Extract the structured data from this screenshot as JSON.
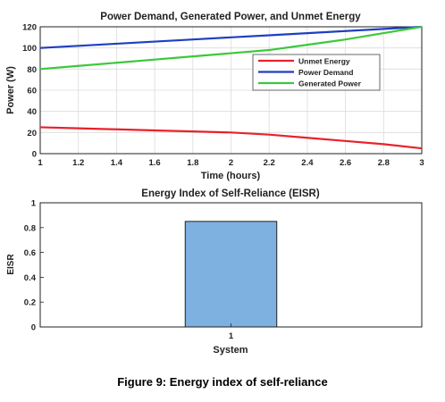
{
  "caption": "Figure 9: Energy index of self-reliance",
  "chart_data": [
    {
      "type": "line",
      "title": "Power Demand, Generated Power, and Unmet Energy",
      "xlabel": "Time (hours)",
      "ylabel": "Power (W)",
      "xlim": [
        1,
        3
      ],
      "ylim": [
        0,
        120
      ],
      "xticks": [
        "1",
        "1.2",
        "1.4",
        "1.6",
        "1.8",
        "2",
        "2.2",
        "2.4",
        "2.6",
        "2.8",
        "3"
      ],
      "yticks": [
        "0",
        "20",
        "40",
        "60",
        "80",
        "100",
        "120"
      ],
      "grid": true,
      "legend_position": "right",
      "x": [
        1,
        1.2,
        1.4,
        1.6,
        1.8,
        2,
        2.2,
        2.4,
        2.6,
        2.8,
        3
      ],
      "series": [
        {
          "name": "Unmet Energy",
          "color": "#e8222a",
          "values": [
            25,
            24,
            23,
            22,
            21,
            20,
            18,
            15,
            12,
            9,
            5
          ]
        },
        {
          "name": "Power Demand",
          "color": "#1f3fbf",
          "values": [
            100,
            102,
            104,
            106,
            108,
            110,
            112,
            114,
            116,
            118,
            120
          ]
        },
        {
          "name": "Generated Power",
          "color": "#3cc83c",
          "values": [
            80,
            83,
            86,
            89,
            92,
            95,
            98,
            103,
            108,
            114,
            120
          ]
        }
      ]
    },
    {
      "type": "bar",
      "title": "Energy Index of Self-Reliance (EISR)",
      "xlabel": "System",
      "ylabel": "EISR",
      "ylim": [
        0,
        1
      ],
      "yticks": [
        "0",
        "0.2",
        "0.4",
        "0.6",
        "0.8",
        "1"
      ],
      "categories": [
        "1"
      ],
      "values": [
        0.85
      ],
      "bar_color": "#7eb0e0",
      "grid": false
    }
  ]
}
